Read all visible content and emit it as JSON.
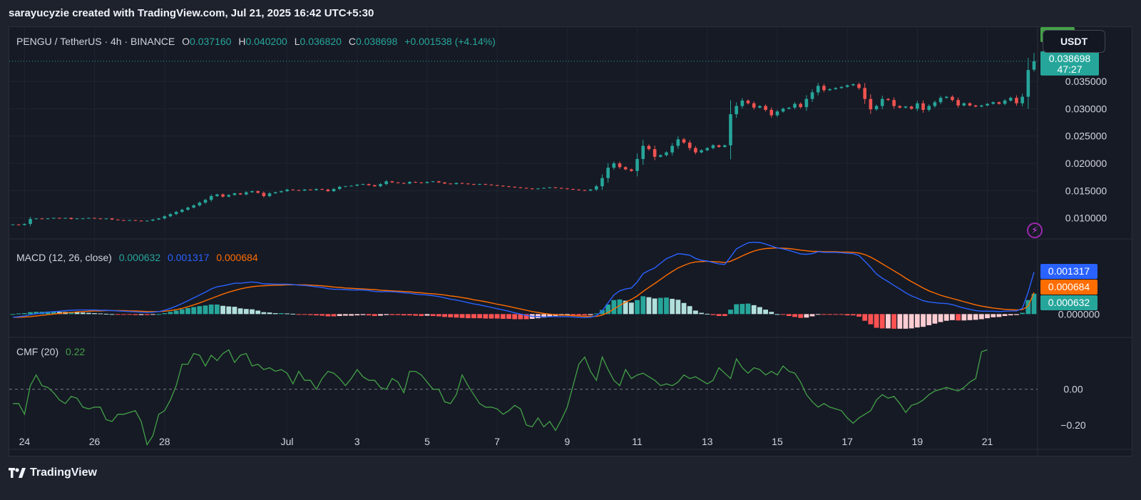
{
  "caption": "sarayucyzie created with TradingView.com, Jul 21, 2025 16:42 UTC+5:30",
  "header": {
    "symbol": "PENGU / TetherUS · 4h · BINANCE",
    "o_label": "O",
    "o_value": "0.037160",
    "h_label": "H",
    "h_value": "0.040200",
    "l_label": "L",
    "l_value": "0.036820",
    "c_label": "C",
    "c_value": "0.038698",
    "change": "+0.001538 (+4.14%)"
  },
  "currency_button": "USDT",
  "price_tag": {
    "price": "0.038698",
    "countdown": "47:27"
  },
  "macd_legend": {
    "title": "MACD (12, 26, close)",
    "hist": "0.000632",
    "macd": "0.001317",
    "signal": "0.000684"
  },
  "cmf_legend": {
    "title": "CMF (20)",
    "value": "0.22"
  },
  "footer": {
    "brand": "TradingView"
  },
  "colors": {
    "up": "#26a69a",
    "down": "#ef5350",
    "macd": "#2962ff",
    "signal": "#ff6d00",
    "cmf": "#43a047",
    "hist_up_strong": "#26a69a",
    "hist_up_weak": "#b2dfdb",
    "hist_down_strong": "#ff5252",
    "hist_down_weak": "#ffcdd2",
    "background": "#161a25"
  },
  "chart_data": [
    {
      "type": "candlestick",
      "series_name": "PENGU / TetherUS",
      "y_ticks": [
        0.01,
        0.015,
        0.02,
        0.025,
        0.03,
        0.035
      ],
      "ylim": [
        0.0068,
        0.0413
      ],
      "x_ticks": [
        {
          "t": 2,
          "label": "24"
        },
        {
          "t": 14,
          "label": "26"
        },
        {
          "t": 26,
          "label": "28"
        },
        {
          "t": 47,
          "label": "Jul"
        },
        {
          "t": 59,
          "label": "3"
        },
        {
          "t": 71,
          "label": "5"
        },
        {
          "t": 83,
          "label": "7"
        },
        {
          "t": 95,
          "label": "9"
        },
        {
          "t": 107,
          "label": "11"
        },
        {
          "t": 119,
          "label": "13"
        },
        {
          "t": 131,
          "label": "15"
        },
        {
          "t": 143,
          "label": "17"
        },
        {
          "t": 155,
          "label": "19"
        },
        {
          "t": 167,
          "label": "21"
        }
      ],
      "closes": [
        0.0088,
        0.0087,
        0.0089,
        0.0098,
        0.0099,
        0.0098,
        0.0099,
        0.01,
        0.0099,
        0.01,
        0.0098,
        0.0099,
        0.0099,
        0.01,
        0.0099,
        0.0098,
        0.0099,
        0.0097,
        0.0096,
        0.0095,
        0.0096,
        0.0095,
        0.0094,
        0.0095,
        0.0097,
        0.0099,
        0.0103,
        0.0107,
        0.0111,
        0.0115,
        0.0119,
        0.0123,
        0.0128,
        0.0133,
        0.014,
        0.0143,
        0.0139,
        0.0142,
        0.0145,
        0.0143,
        0.0147,
        0.0149,
        0.0146,
        0.014,
        0.0145,
        0.0147,
        0.0149,
        0.0152,
        0.0151,
        0.015,
        0.0152,
        0.0151,
        0.0153,
        0.0152,
        0.0149,
        0.0153,
        0.0157,
        0.0158,
        0.0159,
        0.0161,
        0.0162,
        0.016,
        0.0158,
        0.0162,
        0.0167,
        0.0165,
        0.0164,
        0.0163,
        0.0166,
        0.0165,
        0.0164,
        0.0166,
        0.0167,
        0.0165,
        0.0163,
        0.0162,
        0.0164,
        0.0163,
        0.0162,
        0.0161,
        0.0162,
        0.0161,
        0.016,
        0.0159,
        0.0158,
        0.0157,
        0.0156,
        0.0155,
        0.0154,
        0.0153,
        0.0154,
        0.0155,
        0.0156,
        0.0155,
        0.0154,
        0.0153,
        0.0152,
        0.0151,
        0.015,
        0.0152,
        0.0158,
        0.0173,
        0.0192,
        0.02,
        0.0193,
        0.0189,
        0.0186,
        0.0208,
        0.0232,
        0.0226,
        0.0212,
        0.0215,
        0.022,
        0.0232,
        0.0244,
        0.0238,
        0.0228,
        0.022,
        0.0224,
        0.0228,
        0.0233,
        0.023,
        0.0233,
        0.029,
        0.0305,
        0.0315,
        0.031,
        0.0302,
        0.0305,
        0.0298,
        0.0288,
        0.0295,
        0.03,
        0.0302,
        0.0309,
        0.0303,
        0.0318,
        0.033,
        0.0342,
        0.0334,
        0.0336,
        0.0338,
        0.034,
        0.0343,
        0.0345,
        0.0338,
        0.0318,
        0.0299,
        0.0305,
        0.0318,
        0.0316,
        0.0305,
        0.0302,
        0.0304,
        0.03,
        0.031,
        0.0298,
        0.0305,
        0.0312,
        0.032,
        0.0322,
        0.0316,
        0.0306,
        0.031,
        0.0306,
        0.0304,
        0.0306,
        0.0309,
        0.0312,
        0.0309,
        0.0315,
        0.032,
        0.031,
        0.0322,
        0.0371,
        0.0387
      ],
      "last_candle": {
        "open": 0.03716,
        "high": 0.0402,
        "low": 0.03682,
        "close": 0.038698
      }
    },
    {
      "type": "macd",
      "title": "MACD (12, 26, close)",
      "y_ticks": [
        0.0
      ],
      "ylim": [
        -0.00062,
        0.00225
      ],
      "macd_line": [
        -0.0001,
        -8e-05,
        -6e-05,
        -2e-05,
        1e-05,
        3e-05,
        6e-05,
        8e-05,
        9e-05,
        0.00011,
        0.00012,
        0.00013,
        0.00013,
        0.00013,
        0.00013,
        0.00012,
        0.00012,
        0.00011,
        0.0001,
        9e-05,
        8e-05,
        7e-05,
        6e-05,
        5e-05,
        6e-05,
        8e-05,
        0.00012,
        0.00018,
        0.00025,
        0.00033,
        0.00042,
        0.00051,
        0.0006,
        0.00069,
        0.00079,
        0.00086,
        0.00089,
        0.00093,
        0.00097,
        0.00097,
        0.00099,
        0.00101,
        0.00099,
        0.00095,
        0.00095,
        0.00094,
        0.00094,
        0.00094,
        0.00093,
        0.00091,
        0.0009,
        0.00088,
        0.00086,
        0.00084,
        0.0008,
        0.00078,
        0.00078,
        0.00077,
        0.00076,
        0.00076,
        0.00076,
        0.00074,
        0.00071,
        0.0007,
        0.00071,
        0.0007,
        0.00069,
        0.00067,
        0.00066,
        0.00063,
        0.00061,
        0.0006,
        0.00058,
        0.00055,
        0.00051,
        0.00047,
        0.00044,
        0.0004,
        0.00036,
        0.00032,
        0.00029,
        0.00025,
        0.00021,
        0.00017,
        0.00013,
        9e-05,
        4e-05,
        0.0,
        -4e-05,
        -7e-05,
        -8e-05,
        -9e-05,
        -8e-05,
        -8e-05,
        -8e-05,
        -8e-05,
        -9e-05,
        -0.0001,
        -0.00011,
        -0.0001,
        -5e-05,
        0.0001,
        0.00035,
        0.0006,
        0.00073,
        0.00079,
        0.00082,
        0.00101,
        0.00127,
        0.00137,
        0.00145,
        0.0016,
        0.00174,
        0.00182,
        0.0019,
        0.00188,
        0.00185,
        0.00175,
        0.00169,
        0.00167,
        0.00162,
        0.00158,
        0.00156,
        0.0018,
        0.00205,
        0.00215,
        0.00224,
        0.00226,
        0.00225,
        0.0022,
        0.00214,
        0.00208,
        0.00205,
        0.002,
        0.00195,
        0.00189,
        0.00188,
        0.0019,
        0.00196,
        0.00194,
        0.00194,
        0.00194,
        0.00193,
        0.00191,
        0.0019,
        0.00184,
        0.00166,
        0.00147,
        0.00126,
        0.00113,
        0.00102,
        0.0009,
        0.00079,
        0.00067,
        0.00057,
        0.0005,
        0.00042,
        0.00038,
        0.00036,
        0.00034,
        0.00033,
        0.0003,
        0.00024,
        0.00019,
        0.00015,
        0.00011,
        9e-05,
        9e-05,
        9e-05,
        8e-05,
        9e-05,
        0.0001,
        0.0001,
        0.00018,
        0.00069,
        0.00132
      ],
      "signal_line": [
        -0.0001,
        -0.0001,
        -9e-05,
        -8e-05,
        -6e-05,
        -4e-05,
        -2e-05,
        0.0,
        2e-05,
        4e-05,
        5e-05,
        7e-05,
        8e-05,
        9e-05,
        0.0001,
        0.0001,
        0.00011,
        0.00011,
        0.00011,
        0.00011,
        0.0001,
        0.0001,
        9e-05,
        8e-05,
        8e-05,
        8e-05,
        9e-05,
        0.00011,
        0.00014,
        0.00018,
        0.00023,
        0.00029,
        0.00035,
        0.00042,
        0.00049,
        0.00056,
        0.00063,
        0.00069,
        0.00074,
        0.00079,
        0.00083,
        0.00086,
        0.00088,
        0.00089,
        0.0009,
        0.00091,
        0.00091,
        0.00092,
        0.00092,
        0.00092,
        0.00092,
        0.00091,
        0.0009,
        0.00089,
        0.00087,
        0.00085,
        0.00084,
        0.00082,
        0.00081,
        0.0008,
        0.00079,
        0.00078,
        0.00077,
        0.00075,
        0.00074,
        0.00073,
        0.00072,
        0.00071,
        0.0007,
        0.00068,
        0.00067,
        0.00065,
        0.00064,
        0.00062,
        0.0006,
        0.00057,
        0.00055,
        0.00052,
        0.00049,
        0.00045,
        0.00042,
        0.00039,
        0.00035,
        0.00031,
        0.00028,
        0.00024,
        0.0002,
        0.00016,
        0.00012,
        8e-05,
        5e-05,
        2e-05,
        0.0,
        -2e-05,
        -3e-05,
        -4e-05,
        -5e-05,
        -6e-05,
        -7e-05,
        -7e-05,
        -7e-05,
        -3e-05,
        5e-05,
        0.00016,
        0.00027,
        0.00037,
        0.00046,
        0.00057,
        0.00071,
        0.00084,
        0.00096,
        0.00109,
        0.00122,
        0.00134,
        0.00145,
        0.00153,
        0.0016,
        0.00164,
        0.00165,
        0.00166,
        0.00165,
        0.00164,
        0.00162,
        0.00166,
        0.00174,
        0.00183,
        0.00191,
        0.00198,
        0.00203,
        0.00206,
        0.00207,
        0.00208,
        0.00207,
        0.00206,
        0.00204,
        0.00201,
        0.00199,
        0.00197,
        0.00197,
        0.00196,
        0.00196,
        0.00196,
        0.00195,
        0.00195,
        0.00194,
        0.00192,
        0.00187,
        0.00179,
        0.00169,
        0.00158,
        0.00147,
        0.00136,
        0.00125,
        0.00113,
        0.00102,
        0.00092,
        0.00082,
        0.00073,
        0.00066,
        0.00059,
        0.00054,
        0.00049,
        0.00044,
        0.00039,
        0.00034,
        0.00029,
        0.00025,
        0.00022,
        0.00019,
        0.00017,
        0.00015,
        0.00014,
        0.00013,
        0.00014,
        0.00025,
        0.00068
      ]
    },
    {
      "type": "line",
      "title": "CMF (20)",
      "y_ticks": [
        0.0,
        -0.2
      ],
      "ylim": [
        -0.32,
        0.27
      ],
      "values": [
        -0.08,
        -0.08,
        -0.14,
        0.02,
        0.08,
        0.02,
        0.01,
        -0.02,
        -0.06,
        -0.08,
        -0.04,
        -0.05,
        -0.1,
        -0.11,
        -0.1,
        -0.1,
        -0.17,
        -0.18,
        -0.14,
        -0.14,
        -0.13,
        -0.12,
        -0.18,
        -0.31,
        -0.26,
        -0.14,
        -0.12,
        -0.06,
        0.02,
        0.14,
        0.14,
        0.2,
        0.19,
        0.13,
        0.19,
        0.16,
        0.2,
        0.22,
        0.15,
        0.19,
        0.2,
        0.13,
        0.14,
        0.11,
        0.12,
        0.1,
        0.11,
        0.09,
        0.03,
        0.1,
        0.05,
        0.05,
        0.0,
        0.06,
        0.1,
        0.09,
        0.06,
        0.02,
        0.06,
        0.11,
        0.07,
        0.05,
        0.05,
        0.01,
        0.0,
        0.06,
        0.04,
        -0.02,
        0.1,
        0.1,
        0.08,
        0.04,
        0.0,
        0.0,
        -0.07,
        -0.08,
        -0.03,
        0.08,
        0.02,
        -0.03,
        -0.08,
        -0.1,
        -0.1,
        -0.11,
        -0.14,
        -0.12,
        -0.09,
        -0.11,
        -0.2,
        -0.21,
        -0.16,
        -0.21,
        -0.18,
        -0.23,
        -0.17,
        -0.1,
        0.02,
        0.14,
        0.18,
        0.1,
        0.05,
        0.18,
        0.11,
        0.05,
        0.02,
        0.11,
        0.06,
        0.08,
        0.09,
        0.07,
        0.05,
        0.02,
        0.03,
        0.02,
        0.04,
        0.08,
        0.06,
        0.07,
        0.05,
        0.03,
        0.05,
        0.12,
        0.09,
        0.06,
        0.17,
        0.12,
        0.09,
        0.12,
        0.11,
        0.08,
        0.1,
        0.08,
        0.13,
        0.1,
        0.09,
        0.04,
        -0.03,
        -0.07,
        -0.1,
        -0.08,
        -0.1,
        -0.11,
        -0.12,
        -0.16,
        -0.19,
        -0.16,
        -0.14,
        -0.12,
        -0.06,
        -0.03,
        -0.05,
        -0.04,
        -0.08,
        -0.13,
        -0.09,
        -0.08,
        -0.06,
        -0.03,
        -0.01,
        0.0,
        0.01,
        0.0,
        -0.01,
        0.01,
        0.04,
        0.06,
        0.21,
        0.22
      ]
    }
  ]
}
